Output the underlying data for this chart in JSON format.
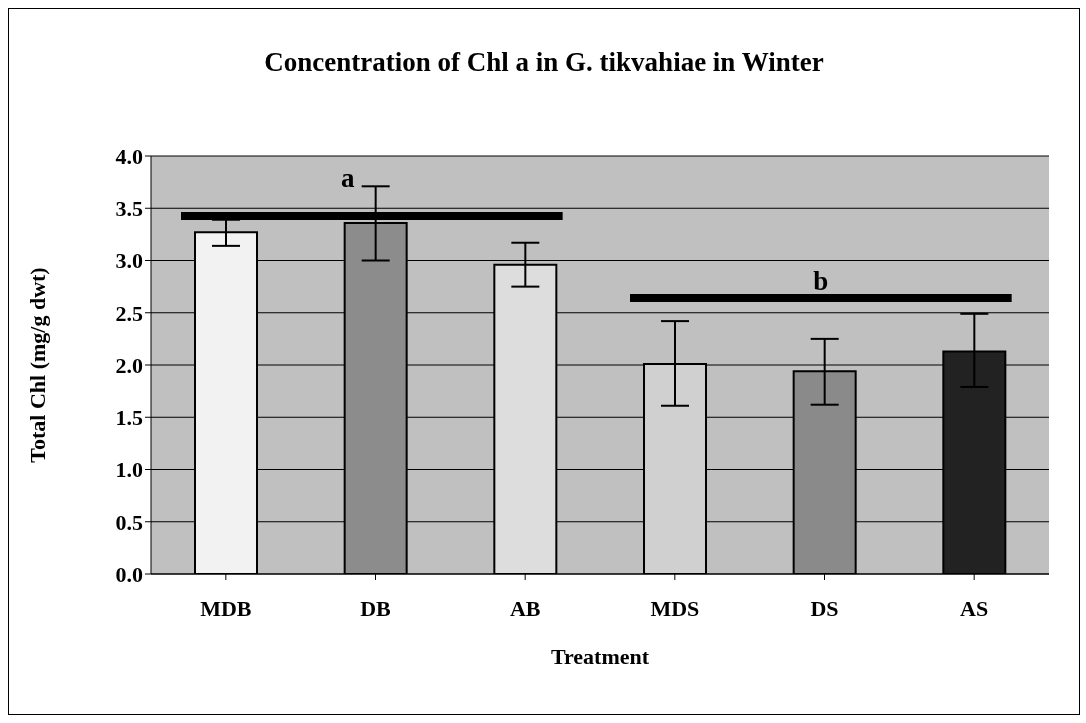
{
  "chart_data": {
    "type": "bar",
    "title": "Concentration of Chl a in G. tikvahiae  in Winter",
    "xlabel": "Treatment",
    "ylabel": "Total Chl (mg/g dwt)",
    "categories": [
      "MDB",
      "DB",
      "AB",
      "MDS",
      "DS",
      "AS"
    ],
    "values": [
      3.27,
      3.36,
      2.96,
      2.01,
      1.94,
      2.13
    ],
    "errors": [
      [
        3.14,
        3.39
      ],
      [
        3.0,
        3.71
      ],
      [
        2.75,
        3.17
      ],
      [
        1.61,
        2.42
      ],
      [
        1.62,
        2.25
      ],
      [
        1.79,
        2.49
      ]
    ],
    "colors": [
      "#f2f2f2",
      "#8c8c8c",
      "#dddddd",
      "#d0d0d0",
      "#8a8a8a",
      "#222222"
    ],
    "ylim": [
      0,
      4
    ],
    "yticks": [
      {
        "value": 0,
        "label": "0.0"
      },
      0.5,
      {
        "value": 1,
        "label": "1.0"
      },
      1.5,
      {
        "value": 2,
        "label": "2.0"
      },
      2.5,
      {
        "value": 3,
        "label": "3.0"
      },
      3.5,
      {
        "value": 4,
        "label": "4.0"
      }
    ],
    "grid": "y",
    "annotations": [
      "a",
      "b"
    ]
  }
}
